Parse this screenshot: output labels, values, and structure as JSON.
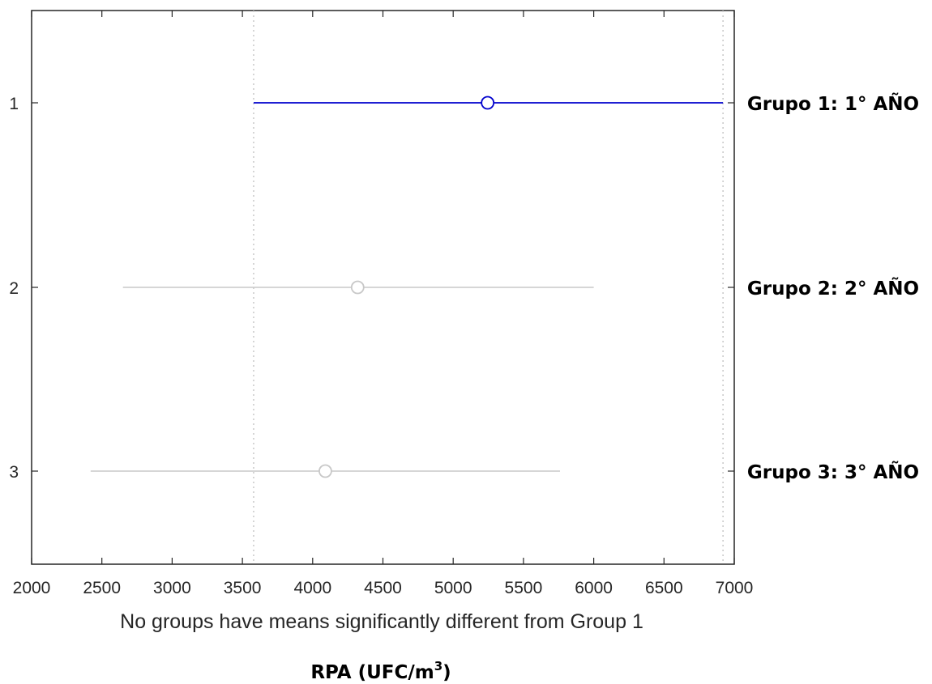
{
  "chart_data": {
    "type": "scatter",
    "xlim": [
      2000,
      7000
    ],
    "x_ticks": [
      "2000",
      "2500",
      "3000",
      "3500",
      "4000",
      "4500",
      "5000",
      "5500",
      "6000",
      "6500",
      "7000"
    ],
    "y_ticks": [
      "1",
      "2",
      "3"
    ],
    "groups": [
      {
        "index": 1,
        "label": "Grupo 1: 1° AÑO",
        "mean": 5245,
        "lower": 3580,
        "upper": 6920,
        "highlighted": true
      },
      {
        "index": 2,
        "label": "Grupo 2: 2° AÑO",
        "mean": 4320,
        "lower": 2650,
        "upper": 6000,
        "highlighted": false
      },
      {
        "index": 3,
        "label": "Grupo 3: 3° AÑO",
        "mean": 4090,
        "lower": 2420,
        "upper": 5760,
        "highlighted": false
      }
    ],
    "reference_lines": [
      3580,
      6920
    ],
    "xlabel": "No groups have means significantly different from Group 1",
    "title": {
      "main": "RPA (UFC/m",
      "superscript": "3",
      "close": ")"
    },
    "grid": false,
    "colors": {
      "highlight": "#0000cd",
      "muted": "#c8c8c8",
      "reference": "#c8c8c8",
      "axis": "#262626"
    }
  }
}
